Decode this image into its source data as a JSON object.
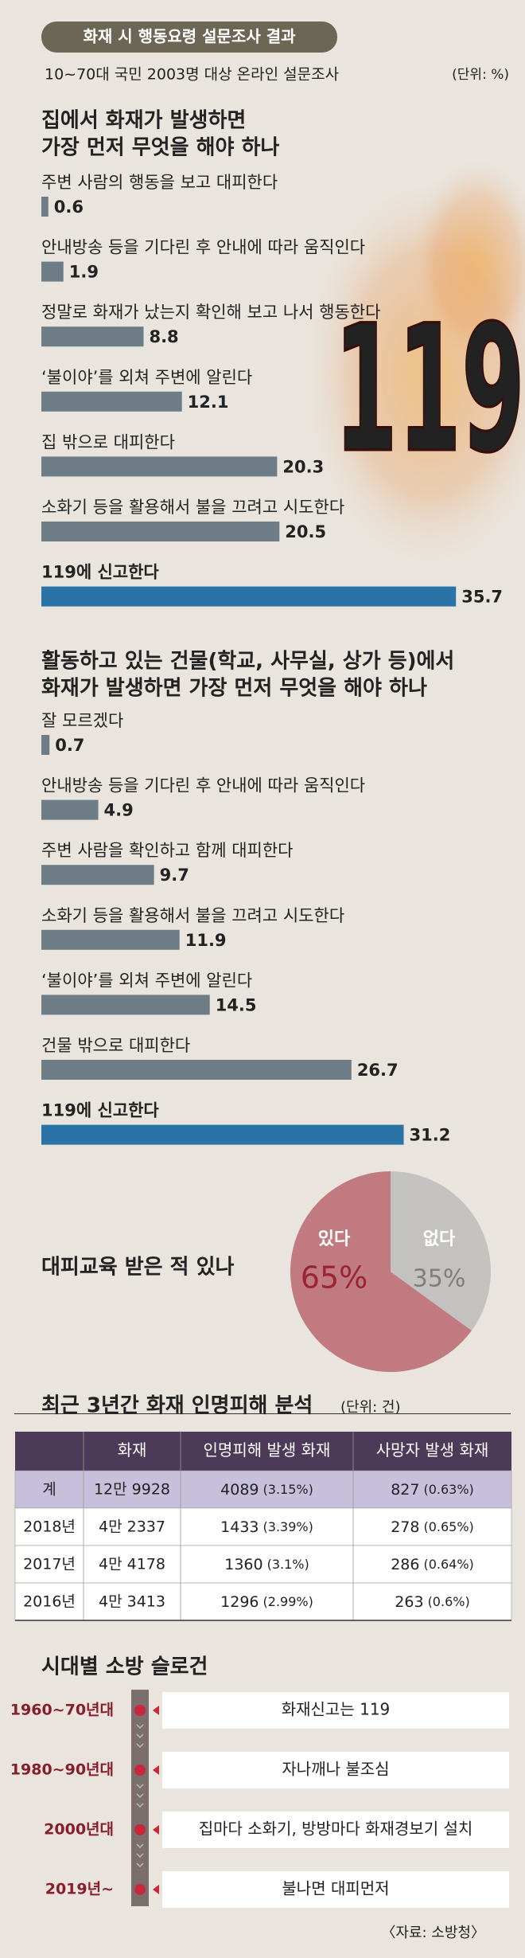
{
  "header": {
    "title": "화재 시 행동요령 설문조사 결과",
    "subtitle": "10~70대 국민 2003명 대상 온라인 설문조사",
    "unit": "(단위: %)",
    "image_text": "119"
  },
  "chart_data": [
    {
      "type": "bar",
      "title": [
        "집에서 화재가 발생하면",
        "가장 먼저 무엇을 해야 하나"
      ],
      "categories": [
        "주변 사람의 행동을 보고 대피한다",
        "안내방송 등을 기다린 후 안내에 따라 움직인다",
        "정말로 화재가 났는지 확인해 보고 나서 행동한다",
        "‘불이야’를 외쳐 주변에 알린다",
        "집 밖으로 대피한다",
        "소화기 등을 활용해서 불을 끄려고 시도한다",
        "119에 신고한다"
      ],
      "values": [
        0.6,
        1.9,
        8.8,
        12.1,
        20.3,
        20.5,
        35.7
      ],
      "colors": [
        "#6d7c85",
        "#6d7c85",
        "#6d7c85",
        "#6d7c85",
        "#6d7c85",
        "#6d7c85",
        "#2b73a6"
      ]
    },
    {
      "type": "bar",
      "title": [
        "활동하고 있는 건물(학교, 사무실, 상가 등)에서",
        "화재가 발생하면 가장 먼저 무엇을 해야 하나"
      ],
      "categories": [
        "잘 모르겠다",
        "안내방송 등을 기다린 후 안내에 따라 움직인다",
        "주변 사람을 확인하고 함께 대피한다",
        "소화기 등을 활용해서 불을 끄려고 시도한다",
        "‘불이야’를 외쳐 주변에 알린다",
        "건물 밖으로 대피한다",
        "119에 신고한다"
      ],
      "values": [
        0.7,
        4.9,
        9.7,
        11.9,
        14.5,
        26.7,
        31.2
      ],
      "colors": [
        "#6d7c85",
        "#6d7c85",
        "#6d7c85",
        "#6d7c85",
        "#6d7c85",
        "#6d7c85",
        "#2b73a6"
      ]
    },
    {
      "type": "pie",
      "title": "대피교육 받은 적 있나",
      "categories": [
        "있다",
        "없다"
      ],
      "values": [
        65,
        35
      ],
      "value_labels": [
        "65%",
        "35%"
      ],
      "colors": [
        "#c07a80",
        "#c3c2c1"
      ],
      "label_colors": [
        "#9a2532",
        "#7e7e7e"
      ]
    }
  ],
  "table": {
    "title": "최근 3년간 화재 인명피해 분석",
    "unit": "(단위: 건)",
    "header": [
      "화재",
      "인명피해 발생 화재",
      "사망자 발생 화재"
    ],
    "rows": [
      [
        "계",
        "12만 9928",
        "4089",
        "(3.15%)",
        "827",
        "(0.63%)"
      ],
      [
        "2018년",
        "4만 2337",
        "1433",
        "(3.39%)",
        "278",
        "(0.65%)"
      ],
      [
        "2017년",
        "4만 4178",
        "1360",
        "(3.1%)",
        "286",
        "(0.64%)"
      ],
      [
        "2016년",
        "4만 3413",
        "1296",
        "(2.99%)",
        "263",
        "(0.6%)"
      ]
    ]
  },
  "timeline": {
    "title": "시대별 소방 슬로건",
    "items": [
      {
        "era": "1960~70년대",
        "slogan": "화재신고는 119"
      },
      {
        "era": "1980~90년대",
        "slogan": "자나깨나 불조심"
      },
      {
        "era": "2000년대",
        "slogan": "집마다 소화기, 방방마다 화재경보기 설치"
      },
      {
        "era": "2019년~",
        "slogan": "불나면 대피먼저"
      }
    ]
  },
  "source": "〈자료: 소방청〉"
}
